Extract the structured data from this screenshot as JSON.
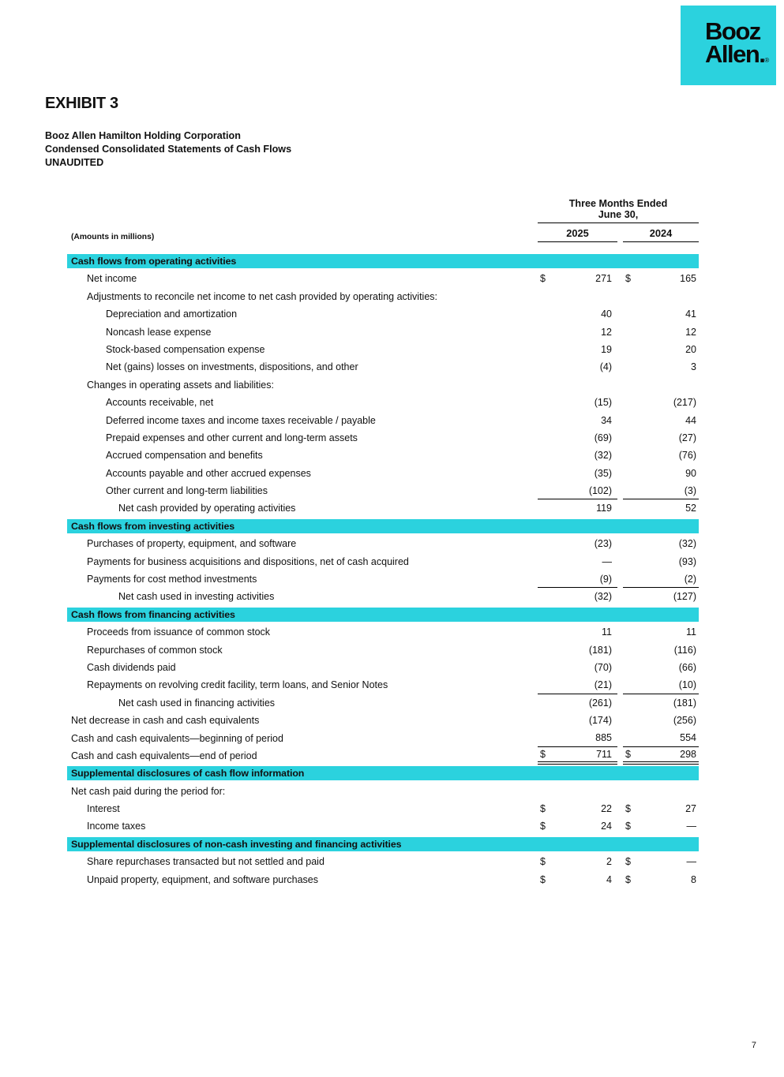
{
  "theme": {
    "accent_color": "#2bd2de",
    "logo_background": "#2bd2de",
    "text_color": "#111111"
  },
  "logo": {
    "line1": "Booz",
    "line2": "Allen.",
    "registered_mark": "®"
  },
  "header": {
    "exhibit_title": "EXHIBIT 3",
    "company_name": "Booz Allen Hamilton Holding Corporation",
    "statement_title": "Condensed Consolidated Statements of Cash Flows",
    "audit_status": "UNAUDITED"
  },
  "table": {
    "amounts_note": "(Amounts in millions)",
    "period_header_line1": "Three Months Ended",
    "period_header_line2": "June 30,",
    "columns": [
      "2025",
      "2024"
    ],
    "rows": [
      {
        "type": "section",
        "label": "Cash flows from operating activities"
      },
      {
        "type": "row",
        "ind": 1,
        "label": "Net income",
        "d1": "$",
        "v1": "271",
        "d2": "$",
        "v2": "165"
      },
      {
        "type": "row",
        "ind": 1,
        "label": "Adjustments to reconcile net income to net cash provided by operating activities:",
        "d1": "",
        "v1": "",
        "d2": "",
        "v2": ""
      },
      {
        "type": "row",
        "ind": 2,
        "label": "Depreciation and amortization",
        "d1": "",
        "v1": "40",
        "d2": "",
        "v2": "41"
      },
      {
        "type": "row",
        "ind": 2,
        "label": "Noncash lease expense",
        "d1": "",
        "v1": "12",
        "d2": "",
        "v2": "12"
      },
      {
        "type": "row",
        "ind": 2,
        "label": "Stock-based compensation expense",
        "d1": "",
        "v1": "19",
        "d2": "",
        "v2": "20"
      },
      {
        "type": "row",
        "ind": 2,
        "label": "Net (gains) losses on investments, dispositions, and other",
        "d1": "",
        "v1": "(4)",
        "d2": "",
        "v2": "3"
      },
      {
        "type": "row",
        "ind": 1,
        "label": "Changes in operating assets and liabilities:",
        "d1": "",
        "v1": "",
        "d2": "",
        "v2": ""
      },
      {
        "type": "row",
        "ind": 2,
        "label": "Accounts receivable, net",
        "d1": "",
        "v1": "(15)",
        "d2": "",
        "v2": "(217)"
      },
      {
        "type": "row",
        "ind": 2,
        "label": "Deferred income taxes and income taxes receivable / payable",
        "d1": "",
        "v1": "34",
        "d2": "",
        "v2": "44"
      },
      {
        "type": "row",
        "ind": 2,
        "label": "Prepaid expenses and other current and long-term assets",
        "d1": "",
        "v1": "(69)",
        "d2": "",
        "v2": "(27)"
      },
      {
        "type": "row",
        "ind": 2,
        "label": "Accrued compensation and benefits",
        "d1": "",
        "v1": "(32)",
        "d2": "",
        "v2": "(76)"
      },
      {
        "type": "row",
        "ind": 2,
        "label": "Accounts payable and other accrued expenses",
        "d1": "",
        "v1": "(35)",
        "d2": "",
        "v2": "90"
      },
      {
        "type": "row",
        "ind": 2,
        "label": "Other current and long-term liabilities",
        "d1": "",
        "v1": "(102)",
        "d2": "",
        "v2": "(3)",
        "rule": "single"
      },
      {
        "type": "row",
        "ind": 3,
        "label": "Net cash provided by operating activities",
        "d1": "",
        "v1": "119",
        "d2": "",
        "v2": "52"
      },
      {
        "type": "section",
        "label": "Cash flows from investing activities"
      },
      {
        "type": "row",
        "ind": 1,
        "label": "Purchases of property, equipment, and software",
        "d1": "",
        "v1": "(23)",
        "d2": "",
        "v2": "(32)"
      },
      {
        "type": "row",
        "ind": 1,
        "label": "Payments for business acquisitions and dispositions, net of cash acquired",
        "d1": "",
        "v1": "—",
        "d2": "",
        "v2": "(93)"
      },
      {
        "type": "row",
        "ind": 1,
        "label": "Payments for cost method investments",
        "d1": "",
        "v1": "(9)",
        "d2": "",
        "v2": "(2)",
        "rule": "single"
      },
      {
        "type": "row",
        "ind": 3,
        "label": "Net cash used in investing activities",
        "d1": "",
        "v1": "(32)",
        "d2": "",
        "v2": "(127)"
      },
      {
        "type": "section",
        "label": "Cash flows from financing activities"
      },
      {
        "type": "row",
        "ind": 1,
        "label": "Proceeds from issuance of common stock",
        "d1": "",
        "v1": "11",
        "d2": "",
        "v2": "11"
      },
      {
        "type": "row",
        "ind": 1,
        "label": "Repurchases of common stock",
        "d1": "",
        "v1": "(181)",
        "d2": "",
        "v2": "(116)"
      },
      {
        "type": "row",
        "ind": 1,
        "label": "Cash dividends paid",
        "d1": "",
        "v1": "(70)",
        "d2": "",
        "v2": "(66)"
      },
      {
        "type": "row",
        "ind": 1,
        "label": "Repayments on revolving credit facility, term loans, and Senior Notes",
        "d1": "",
        "v1": "(21)",
        "d2": "",
        "v2": "(10)",
        "rule": "single"
      },
      {
        "type": "row",
        "ind": 3,
        "label": "Net cash used in financing activities",
        "d1": "",
        "v1": "(261)",
        "d2": "",
        "v2": "(181)"
      },
      {
        "type": "row",
        "ind": 0,
        "label": "Net decrease in cash and cash equivalents",
        "d1": "",
        "v1": "(174)",
        "d2": "",
        "v2": "(256)"
      },
      {
        "type": "row",
        "ind": 0,
        "label": "Cash and cash equivalents—beginning of period",
        "d1": "",
        "v1": "885",
        "d2": "",
        "v2": "554",
        "rule": "single"
      },
      {
        "type": "row",
        "ind": 0,
        "label": "Cash and cash equivalents—end of period",
        "d1": "$",
        "v1": "711",
        "d2": "$",
        "v2": "298",
        "rule": "double"
      },
      {
        "type": "section",
        "label": "Supplemental disclosures of cash flow information"
      },
      {
        "type": "row",
        "ind": 0,
        "label": "Net cash paid during the period for:",
        "d1": "",
        "v1": "",
        "d2": "",
        "v2": ""
      },
      {
        "type": "row",
        "ind": 1,
        "label": "Interest",
        "d1": "$",
        "v1": "22",
        "d2": "$",
        "v2": "27"
      },
      {
        "type": "row",
        "ind": 1,
        "label": "Income taxes",
        "d1": "$",
        "v1": "24",
        "d2": "$",
        "v2": "—"
      },
      {
        "type": "section",
        "label": "Supplemental disclosures of non-cash investing and financing activities"
      },
      {
        "type": "row",
        "ind": 1,
        "label": "Share repurchases transacted but not settled and paid",
        "d1": "$",
        "v1": "2",
        "d2": "$",
        "v2": "—"
      },
      {
        "type": "row",
        "ind": 1,
        "label": "Unpaid property, equipment, and software purchases",
        "d1": "$",
        "v1": "4",
        "d2": "$",
        "v2": "8"
      }
    ]
  },
  "footer": {
    "page_number": "7"
  }
}
